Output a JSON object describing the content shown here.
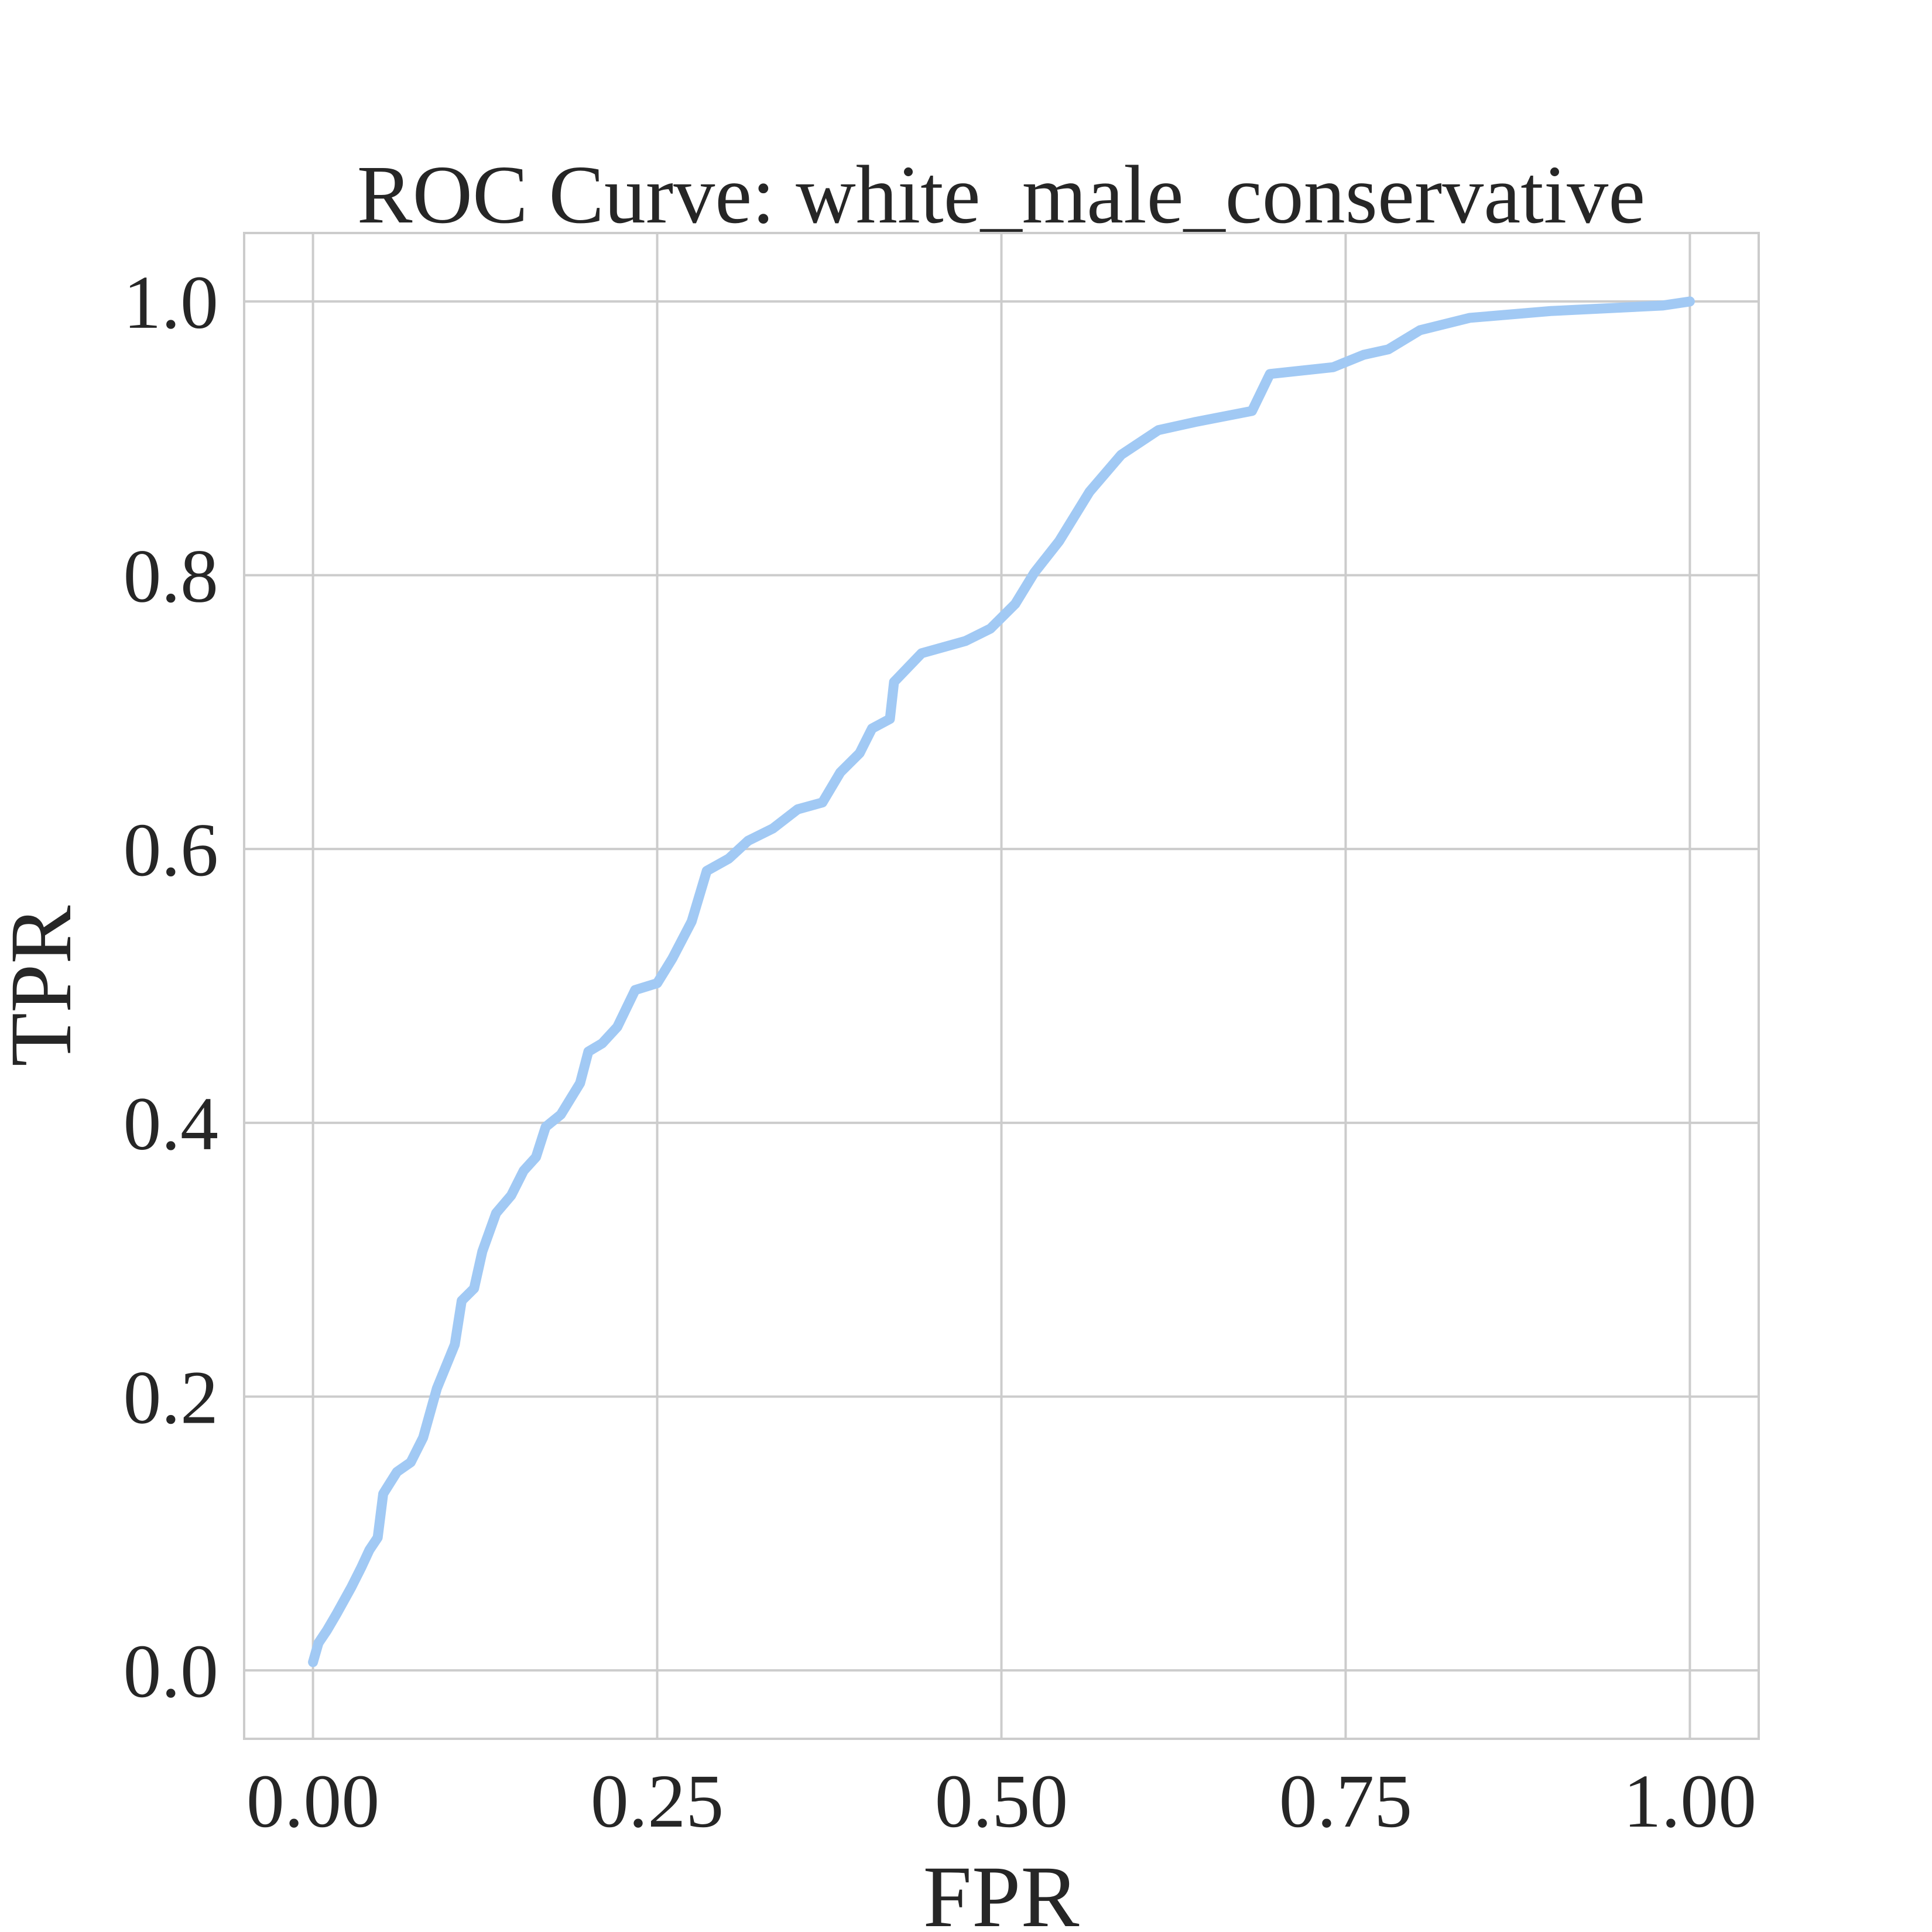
{
  "chart_data": {
    "type": "line",
    "title": "ROC Curve: white_male_conservative",
    "x_label": "FPR",
    "y_label": "TPR",
    "xlim": [
      -0.05,
      1.05
    ],
    "ylim": [
      -0.05,
      1.05
    ],
    "xticks": [
      {
        "value": 0,
        "label": "0.00"
      },
      {
        "value": 0.25,
        "label": "0.25"
      },
      {
        "value": 0.5,
        "label": "0.50"
      },
      {
        "value": 0.75,
        "label": "0.75"
      },
      {
        "value": 1,
        "label": "1.00"
      }
    ],
    "yticks": [
      {
        "value": 0,
        "label": "0.0"
      },
      {
        "value": 0.2,
        "label": "0.2"
      },
      {
        "value": 0.4,
        "label": "0.4"
      },
      {
        "value": 0.6,
        "label": "0.6"
      },
      {
        "value": 0.8,
        "label": "0.8"
      },
      {
        "value": 1,
        "label": "1.0"
      }
    ],
    "grid": true,
    "series": [
      {
        "color": "#a1c9f4",
        "x": [
          0,
          0.004,
          0.01,
          0.017,
          0.028,
          0.035,
          0.041,
          0.047,
          0.051,
          0.061,
          0.071,
          0.08,
          0.09,
          0.103,
          0.108,
          0.117,
          0.123,
          0.133,
          0.144,
          0.153,
          0.162,
          0.169,
          0.18,
          0.194,
          0.2,
          0.21,
          0.221,
          0.234,
          0.25,
          0.261,
          0.275,
          0.286,
          0.302,
          0.316,
          0.334,
          0.352,
          0.37,
          0.383,
          0.397,
          0.406,
          0.419,
          0.422,
          0.442,
          0.474,
          0.492,
          0.51,
          0.524,
          0.542,
          0.564,
          0.587,
          0.614,
          0.641,
          0.682,
          0.695,
          0.741,
          0.763,
          0.781,
          0.804,
          0.84,
          0.899,
          0.98,
          1
        ],
        "values": [
          0.006,
          0.02,
          0.029,
          0.041,
          0.061,
          0.075,
          0.088,
          0.097,
          0.129,
          0.145,
          0.152,
          0.17,
          0.206,
          0.238,
          0.27,
          0.279,
          0.306,
          0.334,
          0.347,
          0.365,
          0.375,
          0.397,
          0.406,
          0.429,
          0.452,
          0.458,
          0.47,
          0.497,
          0.502,
          0.52,
          0.547,
          0.584,
          0.593,
          0.606,
          0.615,
          0.629,
          0.634,
          0.656,
          0.67,
          0.688,
          0.695,
          0.722,
          0.743,
          0.752,
          0.761,
          0.779,
          0.802,
          0.825,
          0.861,
          0.888,
          0.906,
          0.912,
          0.92,
          0.947,
          0.952,
          0.961,
          0.965,
          0.979,
          0.988,
          0.993,
          0.997,
          1
        ]
      }
    ]
  }
}
